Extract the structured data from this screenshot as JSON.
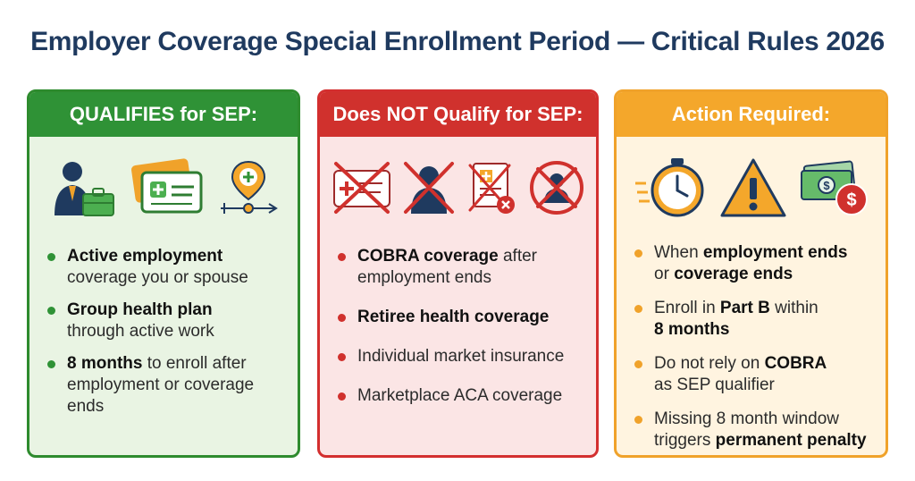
{
  "title": "Employer Coverage Special Enrollment Period — Critical Rules 2026",
  "colors": {
    "title": "#1f3a5f",
    "qualifies": "#2f9236",
    "not_qualify": "#d0312d",
    "action": "#f4a72b"
  },
  "panels": {
    "qualifies": {
      "header": "QUALIFIES for SEP:",
      "icons": [
        "employee-briefcase-icon",
        "health-insurance-card-icon",
        "medical-timeline-icon"
      ],
      "items": [
        {
          "bold": "Active employment",
          "rest": "coverage you or spouse"
        },
        {
          "bold": "Group health plan",
          "rest": "through active work"
        },
        {
          "bold": "8 months",
          "rest": "to enroll after employment or coverage ends"
        }
      ]
    },
    "not_qualify": {
      "header": "Does NOT Qualify for SEP:",
      "icons": [
        "crossed-insurance-card-icon",
        "crossed-retiree-icon",
        "rejected-document-icon",
        "prohibited-person-icon"
      ],
      "items": [
        {
          "bold": "COBRA coverage",
          "rest": "after employment ends"
        },
        {
          "bold": "Retiree health coverage",
          "rest": ""
        },
        {
          "bold": "",
          "rest": "Individual market insurance"
        },
        {
          "bold": "",
          "rest": "Marketplace ACA coverage"
        }
      ]
    },
    "action": {
      "header": "Action Required:",
      "icons": [
        "stopwatch-icon",
        "warning-icon",
        "money-penalty-icon"
      ],
      "items": [
        {
          "t1": "When ",
          "b1": "employment ends",
          "t2": " or ",
          "b2": "coverage ends",
          "t3": ""
        },
        {
          "t1": "Enroll in ",
          "b1": "Part B",
          "t2": " within ",
          "b2": "8 months",
          "t3": ""
        },
        {
          "t1": "Do not rely on ",
          "b1": "COBRA",
          "t2": " as SEP qualifier",
          "b2": "",
          "t3": ""
        },
        {
          "t1": "Missing 8 month window triggers ",
          "b1": "permanent penalty",
          "t2": "",
          "b2": "",
          "t3": ""
        }
      ]
    }
  }
}
